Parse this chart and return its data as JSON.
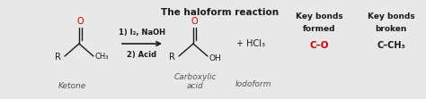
{
  "background_color": "#e8e8e8",
  "title": "The haloform reaction",
  "title_color": "#1a1a1a",
  "black_color": "#1a1a1a",
  "red_color": "#cc0000",
  "gray_color": "#555555",
  "ketone_label": "Ketone",
  "carboxylic_label": "Carboxylic\nacid",
  "iodoform_label": "Iodoform",
  "step1_text": "1) I₂, NaOH",
  "step2_text": "2) Acid",
  "hcl3_text": "+ HCl₃",
  "kbf1": "Key bonds",
  "kbf2": "formed",
  "kbf3": "C–O",
  "kbb1": "Key bonds",
  "kbb2": "broken",
  "kbb3": "C–CH₃"
}
